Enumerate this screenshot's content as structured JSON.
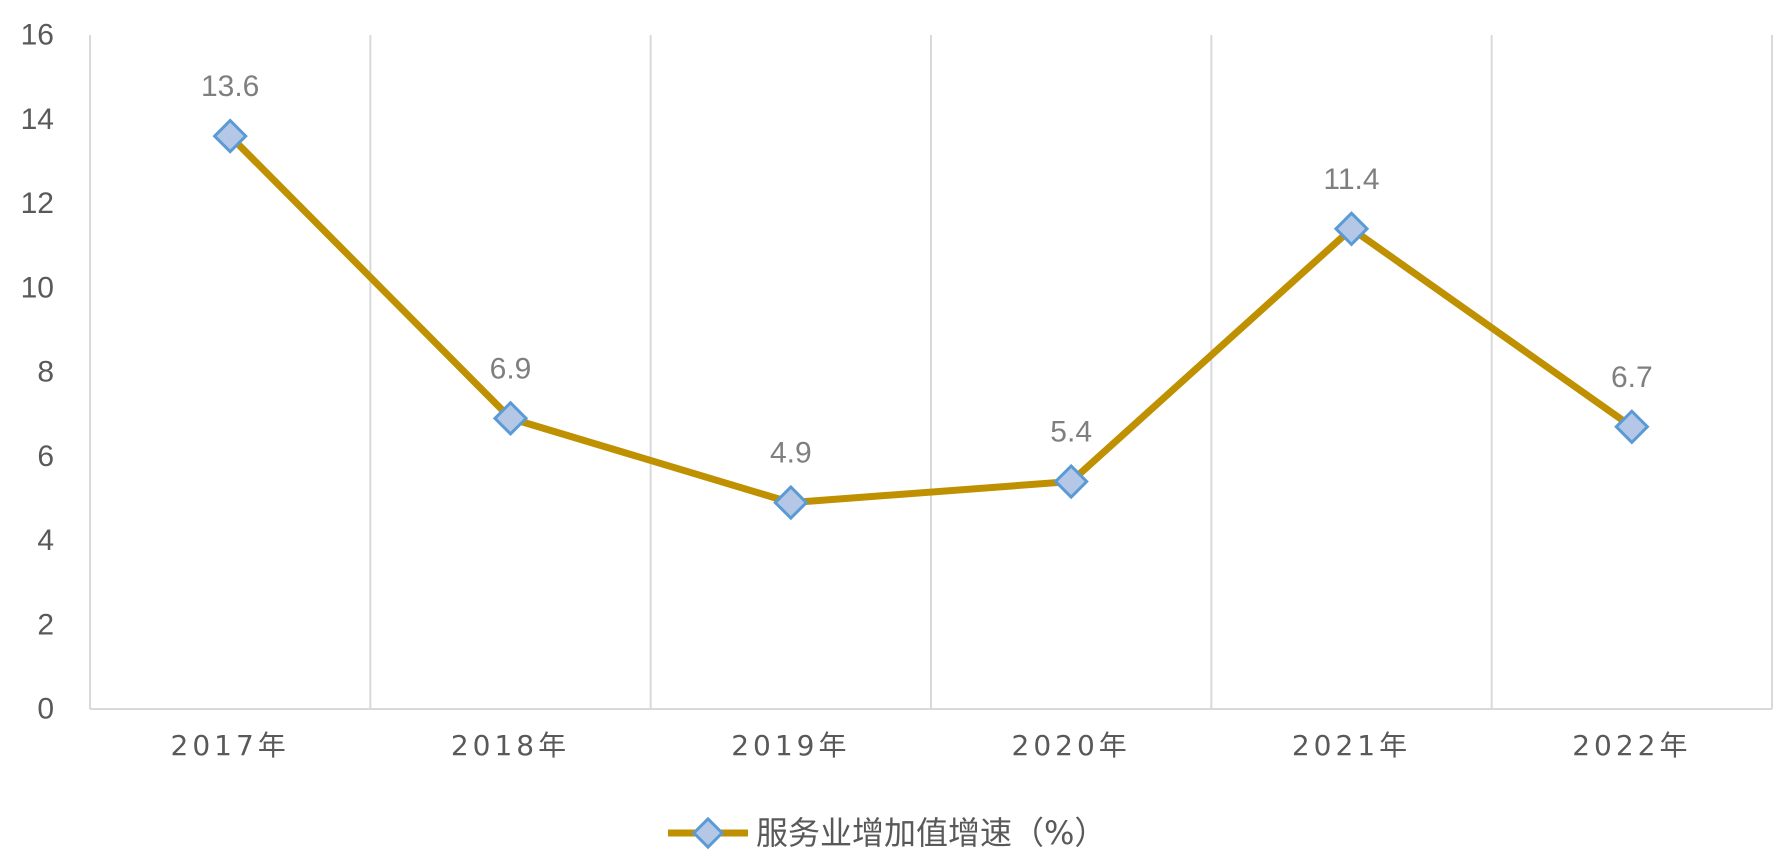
{
  "chart_data": {
    "type": "line",
    "categories": [
      "2017年",
      "2018年",
      "2019年",
      "2020年",
      "2021年",
      "2022年"
    ],
    "series": [
      {
        "name": "服务业增加值增速（%）",
        "values": [
          13.6,
          6.9,
          4.9,
          5.4,
          11.4,
          6.7
        ]
      }
    ],
    "data_labels": [
      "13.6",
      "6.9",
      "4.9",
      "5.4",
      "11.4",
      "6.7"
    ],
    "ylim": [
      0,
      16
    ],
    "yticks": [
      0,
      2,
      4,
      6,
      8,
      10,
      12,
      14,
      16
    ],
    "ytick_labels": [
      "0",
      "2",
      "4",
      "6",
      "8",
      "10",
      "12",
      "14",
      "16"
    ],
    "grid": "vertical",
    "legend_position": "bottom",
    "colors": {
      "line": "#BF9000",
      "marker_fill": "#B4C7E7",
      "marker_stroke": "#5B9BD5",
      "grid": "#D9D9D9"
    }
  }
}
